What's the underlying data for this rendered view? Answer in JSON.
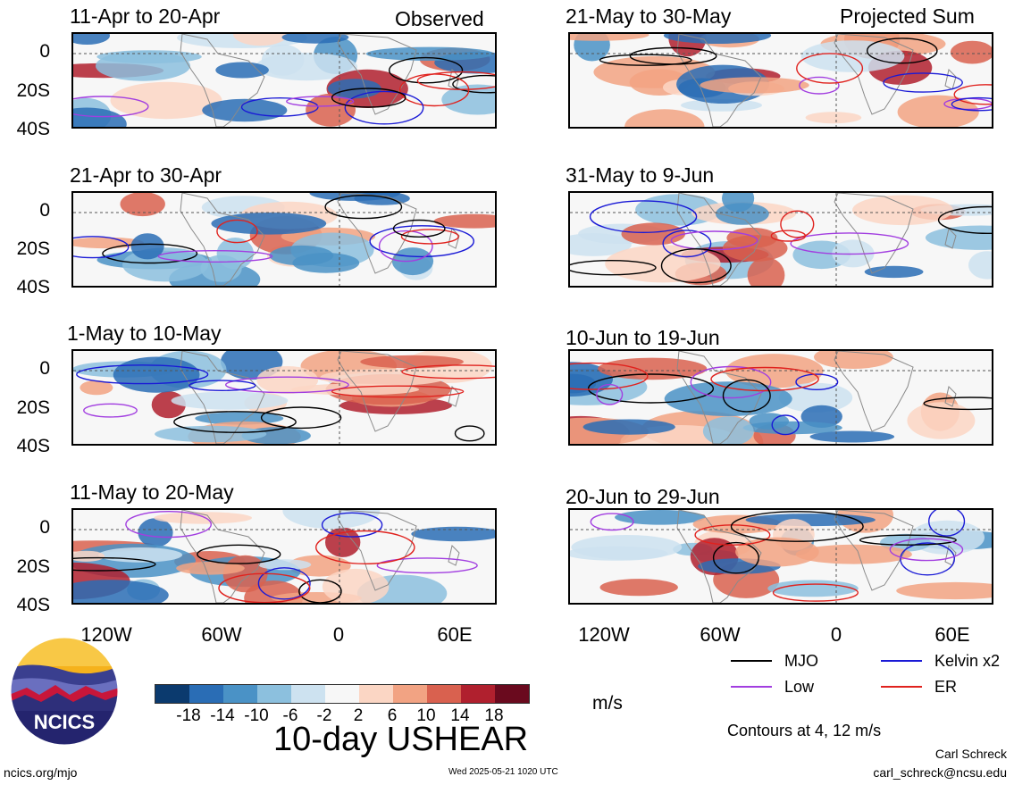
{
  "corner_labels": {
    "left": "Observed",
    "right": "Projected Sum"
  },
  "panels": [
    {
      "title": "11-Apr to 20-Apr"
    },
    {
      "title": "21-Apr to 30-Apr"
    },
    {
      "title": "1-May to 10-May"
    },
    {
      "title": "11-May to 20-May"
    },
    {
      "title": "21-May to 30-May"
    },
    {
      "title": "31-May to 9-Jun"
    },
    {
      "title": "10-Jun to 19-Jun"
    },
    {
      "title": "20-Jun to 29-Jun"
    }
  ],
  "y_ticks": [
    "0",
    "20S",
    "40S"
  ],
  "x_ticks": [
    "120W",
    "60W",
    "0",
    "60E"
  ],
  "legend": {
    "mjo": {
      "label": "MJO",
      "color": "#000000"
    },
    "kelvin": {
      "label": "Kelvin x2",
      "color": "#1a1ad6"
    },
    "low": {
      "label": "Low",
      "color": "#a23ee0"
    },
    "er": {
      "label": "ER",
      "color": "#e0221e"
    }
  },
  "colorbar": {
    "colors": [
      "#0b3a6e",
      "#2a6db5",
      "#4a92c6",
      "#8cc0de",
      "#cde2f0",
      "#f7f7f7",
      "#fbd6c4",
      "#f2a383",
      "#d9614f",
      "#b0202e",
      "#6a0a1e"
    ],
    "ticks": [
      "-18",
      "-14",
      "-10",
      "-6",
      "-2",
      "2",
      "6",
      "10",
      "14",
      "18"
    ],
    "units": "m/s"
  },
  "main_title": "10-day USHEAR",
  "contours_note": "Contours at 4, 12 m/s",
  "logo": {
    "text": "NCICS"
  },
  "author": "Carl Schreck",
  "email": "carl_schreck@ncsu.edu",
  "website": "ncics.org/mjo",
  "timestamp": "Wed 2025-05-21 1020 UTC"
}
